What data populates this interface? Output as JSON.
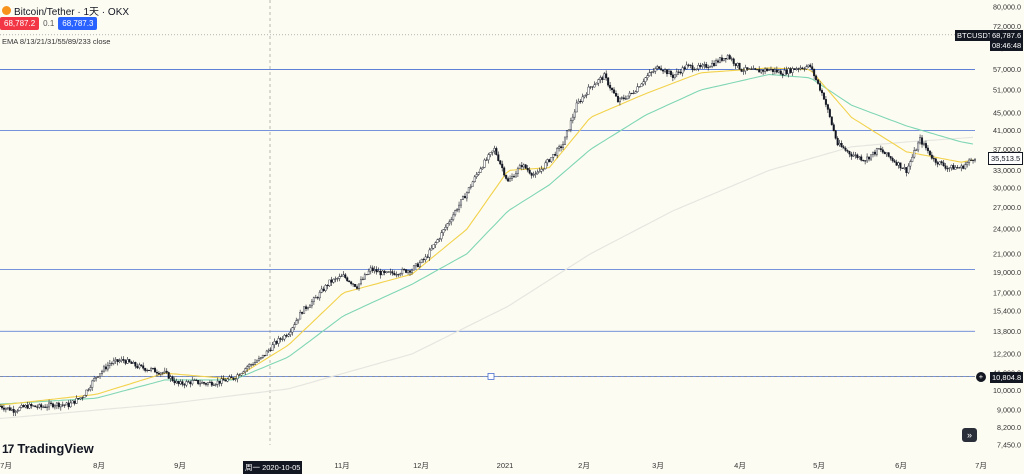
{
  "header": {
    "title": "Bitcoin/Tether · 1天 · OKX",
    "sell_price": "68,787.2",
    "spread": "0.1",
    "buy_price": "68,787.3",
    "indicator": "EMA 8/13/21/31/55/89/233 close"
  },
  "logo_text": "TradingView",
  "scroll_button_glyph": "»",
  "right_tags": {
    "symbol": "BTCUSDT",
    "last_price": "68,787.6",
    "countdown": "08:46:48",
    "current": "35,513.5",
    "crosshair": "10,804.8"
  },
  "crosshair_date_label": "周一 2020-10-05",
  "colors": {
    "background": "#fdfcf3",
    "candle": "#131722",
    "ema_fast": "#f2d24b",
    "ema_mid": "#7fd6b4",
    "ema_slow": "#e6e6e0",
    "hline": "#4a6fd1"
  },
  "chart_data": {
    "type": "candlestick",
    "y_scale": "log",
    "ylim": [
      7450,
      80000
    ],
    "y_ticks": [
      "80,000.0",
      "72,000.0",
      "64,000.0",
      "57,000.0",
      "51,000.0",
      "45,000.0",
      "41,000.0",
      "37,000.0",
      "33,000.0",
      "30,000.0",
      "27,000.0",
      "24,000.0",
      "21,000.0",
      "19,000.0",
      "17,000.0",
      "15,400.0",
      "13,800.0",
      "12,200.0",
      "11,000.0",
      "10,000.0",
      "9,000.0",
      "8,200.0",
      "7,450.0"
    ],
    "x_ticks": [
      "7月",
      "8月",
      "9月",
      "10月",
      "11月",
      "12月",
      "2021",
      "2月",
      "3月",
      "4月",
      "5月",
      "6月",
      "7月"
    ],
    "horizontal_lines": [
      57000,
      41000,
      19300,
      13800,
      10800
    ],
    "price_path": [
      [
        0,
        9200
      ],
      [
        7,
        9000
      ],
      [
        14,
        9200
      ],
      [
        21,
        9150
      ],
      [
        28,
        9300
      ],
      [
        35,
        9250
      ],
      [
        42,
        9700
      ],
      [
        49,
        10800
      ],
      [
        56,
        11600
      ],
      [
        63,
        11800
      ],
      [
        70,
        11400
      ],
      [
        77,
        11200
      ],
      [
        84,
        11000
      ],
      [
        91,
        10350
      ],
      [
        98,
        10500
      ],
      [
        105,
        10400
      ],
      [
        112,
        10500
      ],
      [
        119,
        10700
      ],
      [
        126,
        11400
      ],
      [
        133,
        11900
      ],
      [
        140,
        12900
      ],
      [
        147,
        13700
      ],
      [
        154,
        15400
      ],
      [
        161,
        16500
      ],
      [
        168,
        18000
      ],
      [
        175,
        18600
      ],
      [
        182,
        17600
      ],
      [
        189,
        19300
      ],
      [
        196,
        18800
      ],
      [
        203,
        19000
      ],
      [
        210,
        19300
      ],
      [
        217,
        20500
      ],
      [
        224,
        23000
      ],
      [
        231,
        26000
      ],
      [
        238,
        29300
      ],
      [
        245,
        33500
      ],
      [
        252,
        37000
      ],
      [
        259,
        31000
      ],
      [
        266,
        34000
      ],
      [
        273,
        32000
      ],
      [
        280,
        35000
      ],
      [
        287,
        38000
      ],
      [
        294,
        47000
      ],
      [
        301,
        52000
      ],
      [
        308,
        55000
      ],
      [
        315,
        48000
      ],
      [
        322,
        50000
      ],
      [
        329,
        54500
      ],
      [
        336,
        58000
      ],
      [
        343,
        55000
      ],
      [
        350,
        58000
      ],
      [
        357,
        57500
      ],
      [
        364,
        59000
      ],
      [
        371,
        61500
      ],
      [
        378,
        57000
      ],
      [
        385,
        56500
      ],
      [
        392,
        57000
      ],
      [
        399,
        56000
      ],
      [
        406,
        57500
      ],
      [
        413,
        58000
      ],
      [
        420,
        49000
      ],
      [
        427,
        38000
      ],
      [
        434,
        36000
      ],
      [
        441,
        35000
      ],
      [
        448,
        37000
      ],
      [
        455,
        35000
      ],
      [
        462,
        33000
      ],
      [
        469,
        39000
      ],
      [
        476,
        35000
      ],
      [
        483,
        33500
      ],
      [
        490,
        33500
      ],
      [
        497,
        35513.5
      ]
    ],
    "ema_fast_path": [
      [
        0,
        9250
      ],
      [
        49,
        9800
      ],
      [
        84,
        11000
      ],
      [
        119,
        10650
      ],
      [
        147,
        12800
      ],
      [
        175,
        17000
      ],
      [
        210,
        18800
      ],
      [
        238,
        24000
      ],
      [
        259,
        33000
      ],
      [
        280,
        33500
      ],
      [
        301,
        44000
      ],
      [
        329,
        50000
      ],
      [
        357,
        56000
      ],
      [
        392,
        57500
      ],
      [
        413,
        57000
      ],
      [
        434,
        44000
      ],
      [
        462,
        36500
      ],
      [
        490,
        34500
      ],
      [
        497,
        35000
      ]
    ],
    "ema_mid_path": [
      [
        0,
        9300
      ],
      [
        49,
        9600
      ],
      [
        84,
        10600
      ],
      [
        119,
        10600
      ],
      [
        147,
        12000
      ],
      [
        175,
        15000
      ],
      [
        210,
        17800
      ],
      [
        238,
        21000
      ],
      [
        259,
        26500
      ],
      [
        280,
        30500
      ],
      [
        301,
        37000
      ],
      [
        329,
        44500
      ],
      [
        357,
        51000
      ],
      [
        392,
        55500
      ],
      [
        413,
        54500
      ],
      [
        434,
        47000
      ],
      [
        462,
        42000
      ],
      [
        490,
        38500
      ],
      [
        497,
        38000
      ]
    ],
    "ema_slow_path": [
      [
        0,
        8600
      ],
      [
        84,
        9300
      ],
      [
        147,
        10100
      ],
      [
        210,
        12200
      ],
      [
        259,
        15800
      ],
      [
        301,
        21000
      ],
      [
        343,
        26500
      ],
      [
        392,
        33000
      ],
      [
        434,
        37500
      ],
      [
        462,
        38500
      ],
      [
        497,
        39500
      ]
    ]
  }
}
